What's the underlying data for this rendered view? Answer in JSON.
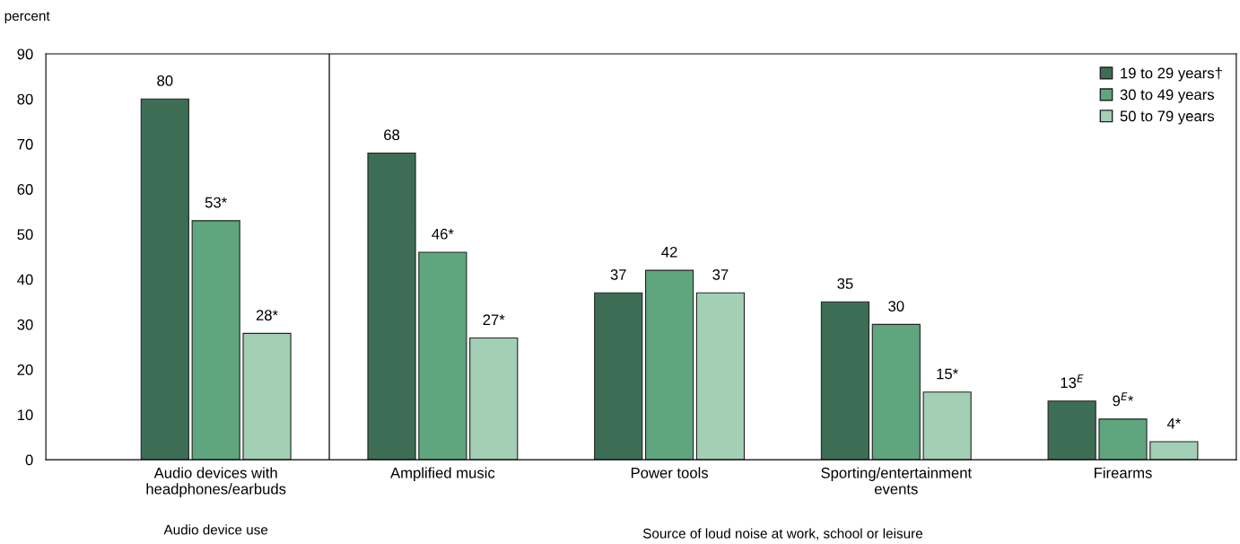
{
  "chart_data": {
    "type": "bar",
    "ylabel": "percent",
    "categories": [
      "Audio devices with\nheadphones/earbuds",
      "Amplified music",
      "Power tools",
      "Sporting/entertainment\nevents",
      "Firearms"
    ],
    "series": [
      {
        "name": "19 to 29 years†",
        "color": "#3d6e55",
        "values": [
          80,
          68,
          37,
          35,
          13
        ],
        "value_labels": [
          "80",
          "68",
          "37",
          "35",
          "13$^{E}$"
        ]
      },
      {
        "name": "30 to 49 years",
        "color": "#5fa67e",
        "values": [
          53,
          46,
          42,
          30,
          9
        ],
        "value_labels": [
          "53*",
          "46*",
          "42",
          "30",
          "9$^{E}$*"
        ]
      },
      {
        "name": "50 to 79 years",
        "color": "#a3cfb5",
        "values": [
          28,
          27,
          37,
          15,
          4
        ],
        "value_labels": [
          "28*",
          "27*",
          "37",
          "15*",
          "4*"
        ]
      }
    ],
    "ylim": [
      0,
      90
    ],
    "yticks": [
      0,
      10,
      20,
      30,
      40,
      50,
      60,
      70,
      80,
      90
    ],
    "annotations": [
      "Audio device use",
      "Source of loud noise at work, school or leisure"
    ],
    "grid": false,
    "legend": "top right"
  }
}
